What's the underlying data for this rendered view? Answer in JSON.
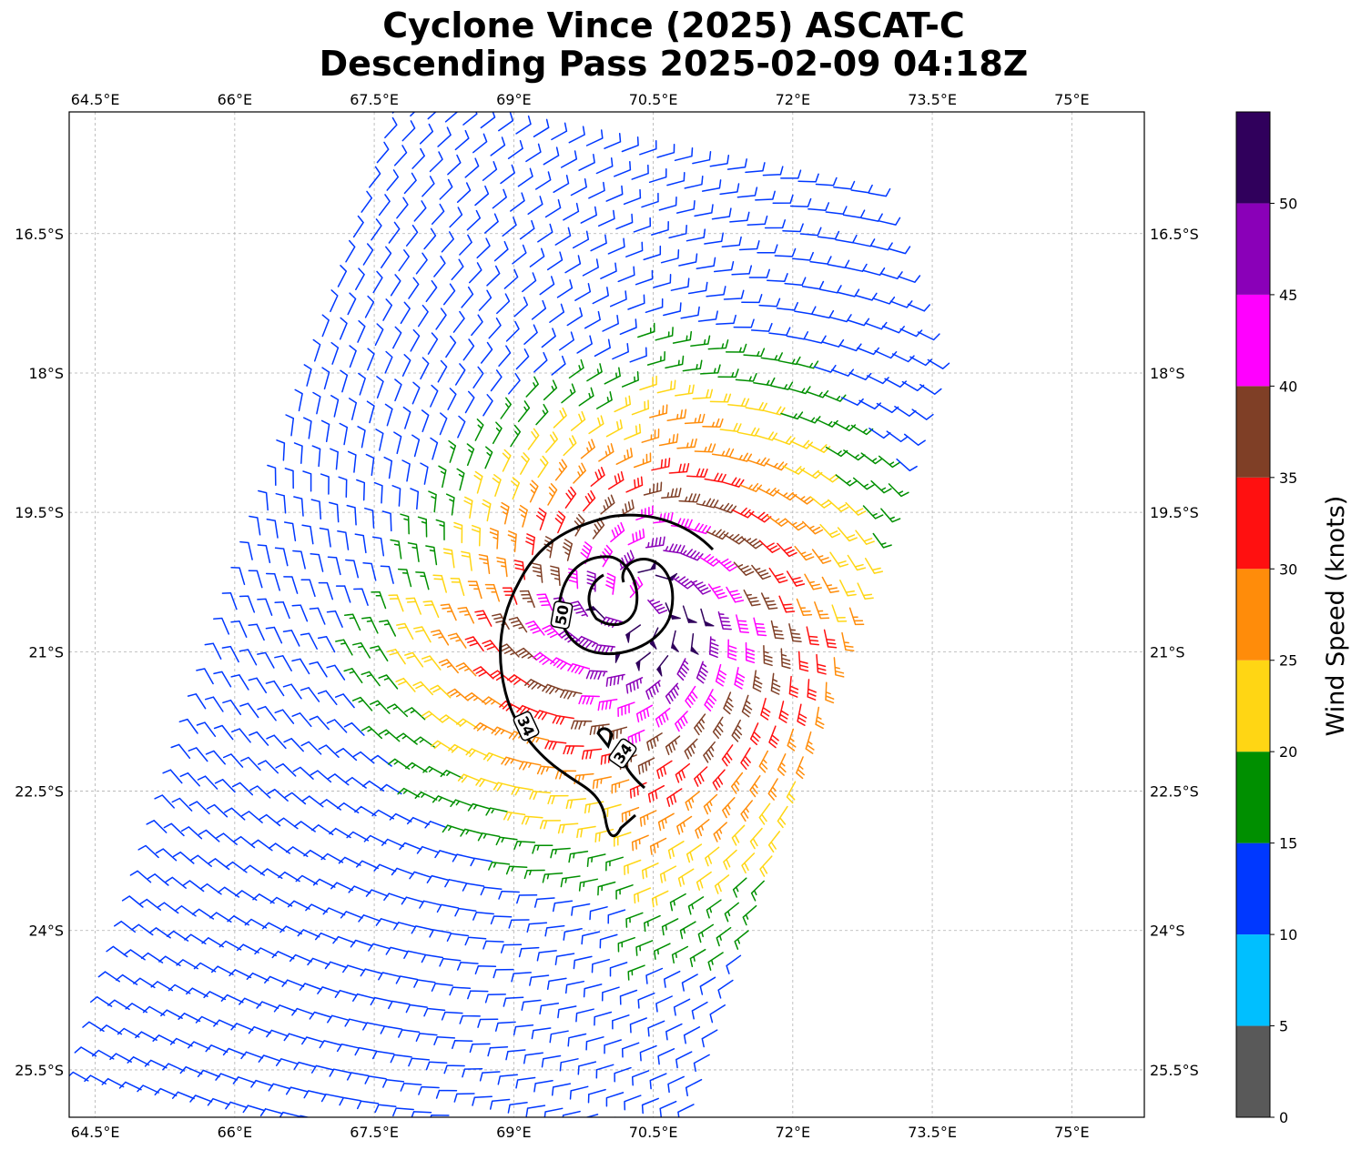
{
  "title": {
    "line1": "Cyclone Vince (2025) ASCAT-C",
    "line2": "Descending Pass 2025-02-09 04:18Z"
  },
  "map": {
    "lon_range": [
      64.22,
      75.78
    ],
    "lat_range": [
      -26.01,
      -15.19
    ],
    "lon_ticks": [
      {
        "value": 64.5,
        "label": "64.5°E"
      },
      {
        "value": 66,
        "label": "66°E"
      },
      {
        "value": 67.5,
        "label": "67.5°E"
      },
      {
        "value": 69,
        "label": "69°E"
      },
      {
        "value": 70.5,
        "label": "70.5°E"
      },
      {
        "value": 72,
        "label": "72°E"
      },
      {
        "value": 73.5,
        "label": "73.5°E"
      },
      {
        "value": 75,
        "label": "75°E"
      }
    ],
    "lat_ticks": [
      {
        "value": -16.5,
        "label": "16.5°S"
      },
      {
        "value": -18,
        "label": "18°S"
      },
      {
        "value": -19.5,
        "label": "19.5°S"
      },
      {
        "value": -21,
        "label": "21°S"
      },
      {
        "value": -22.5,
        "label": "22.5°S"
      },
      {
        "value": -24,
        "label": "24°S"
      },
      {
        "value": -25.5,
        "label": "25.5°S"
      }
    ],
    "gridlines": true,
    "storm_center": {
      "lon": 70.3,
      "lat": -20.5
    },
    "contours": [
      {
        "level": 34,
        "label": "34",
        "color": "#000000"
      },
      {
        "level": 50,
        "label": "50",
        "color": "#000000"
      }
    ]
  },
  "colorbar": {
    "label": "Wind Speed (knots)",
    "bins": [
      {
        "min": 0,
        "max": 5,
        "color": "#595959"
      },
      {
        "min": 5,
        "max": 10,
        "color": "#00bfff"
      },
      {
        "min": 10,
        "max": 15,
        "color": "#0038ff"
      },
      {
        "min": 15,
        "max": 20,
        "color": "#008f00"
      },
      {
        "min": 20,
        "max": 25,
        "color": "#ffd614"
      },
      {
        "min": 25,
        "max": 30,
        "color": "#ff8c0a"
      },
      {
        "min": 30,
        "max": 35,
        "color": "#ff1010"
      },
      {
        "min": 35,
        "max": 40,
        "color": "#7f3f26"
      },
      {
        "min": 40,
        "max": 45,
        "color": "#ff00ff"
      },
      {
        "min": 45,
        "max": 50,
        "color": "#8a00b8"
      },
      {
        "min": 50,
        "max": 55,
        "color": "#30005c"
      }
    ],
    "ticks": [
      0,
      5,
      10,
      15,
      20,
      25,
      30,
      35,
      40,
      45,
      50
    ]
  }
}
